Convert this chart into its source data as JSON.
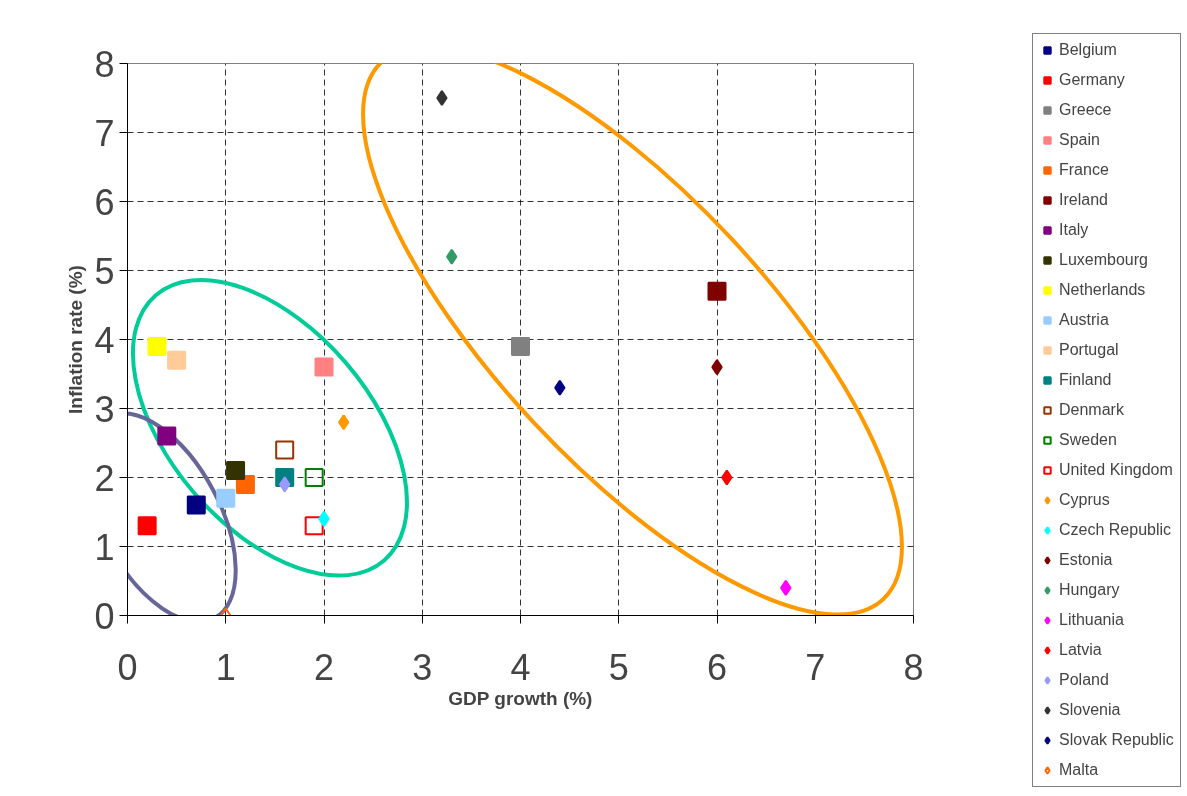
{
  "chart_data": {
    "type": "scatter",
    "xlabel": "GDP growth (%)",
    "ylabel": "Inflation rate (%)",
    "xlim": [
      0,
      8
    ],
    "ylim": [
      0,
      8
    ],
    "xticks": [
      0,
      1,
      2,
      3,
      4,
      5,
      6,
      7,
      8
    ],
    "yticks": [
      0,
      1,
      2,
      3,
      4,
      5,
      6,
      7,
      8
    ],
    "grid": true,
    "line_style": "dashed",
    "legend": "right",
    "series": [
      {
        "name": "Belgium",
        "color": "#000080",
        "marker": "square",
        "x": [
          0.7
        ],
        "values": [
          1.6
        ]
      },
      {
        "name": "Germany",
        "color": "#ff0000",
        "marker": "square",
        "x": [
          0.2
        ],
        "values": [
          1.3
        ]
      },
      {
        "name": "Greece",
        "color": "#808080",
        "marker": "square",
        "x": [
          4.0
        ],
        "values": [
          3.9
        ]
      },
      {
        "name": "Spain",
        "color": "#ff8080",
        "marker": "square",
        "x": [
          2.0
        ],
        "values": [
          3.6
        ]
      },
      {
        "name": "France",
        "color": "#ff6600",
        "marker": "square",
        "x": [
          1.2
        ],
        "values": [
          1.9
        ]
      },
      {
        "name": "Ireland",
        "color": "#800000",
        "marker": "square",
        "x": [
          6.0
        ],
        "values": [
          4.7
        ]
      },
      {
        "name": "Italy",
        "color": "#800080",
        "marker": "square",
        "x": [
          0.4
        ],
        "values": [
          2.6
        ]
      },
      {
        "name": "Luxembourg",
        "color": "#333300",
        "marker": "square",
        "x": [
          1.1
        ],
        "values": [
          2.1
        ]
      },
      {
        "name": "Netherlands",
        "color": "#ffff00",
        "marker": "square",
        "x": [
          0.3
        ],
        "values": [
          3.9
        ]
      },
      {
        "name": "Austria",
        "color": "#99ccff",
        "marker": "square",
        "x": [
          1.0
        ],
        "values": [
          1.7
        ]
      },
      {
        "name": "Portugal",
        "color": "#ffcc99",
        "marker": "square",
        "x": [
          0.5
        ],
        "values": [
          3.7
        ]
      },
      {
        "name": "Finland",
        "color": "#008080",
        "marker": "square",
        "x": [
          1.6
        ],
        "values": [
          2.0
        ]
      },
      {
        "name": "Denmark",
        "color": "#993300",
        "marker": "square_open",
        "x": [
          1.6
        ],
        "values": [
          2.4
        ]
      },
      {
        "name": "Sweden",
        "color": "#008000",
        "marker": "square_open",
        "x": [
          1.9
        ],
        "values": [
          2.0
        ]
      },
      {
        "name": "United Kingdom",
        "color": "#ff0000",
        "marker": "square_open",
        "x": [
          1.9
        ],
        "values": [
          1.3
        ]
      },
      {
        "name": "Cyprus",
        "color": "#ff9900",
        "marker": "diamond",
        "x": [
          2.2
        ],
        "values": [
          2.8
        ]
      },
      {
        "name": "Czech Republic",
        "color": "#00ffff",
        "marker": "diamond",
        "x": [
          2.0
        ],
        "values": [
          1.4
        ]
      },
      {
        "name": "Estonia",
        "color": "#800000",
        "marker": "diamond",
        "x": [
          6.0
        ],
        "values": [
          3.6
        ]
      },
      {
        "name": "Hungary",
        "color": "#339966",
        "marker": "diamond",
        "x": [
          3.3
        ],
        "values": [
          5.2
        ]
      },
      {
        "name": "Lithuania",
        "color": "#ff00ff",
        "marker": "diamond",
        "x": [
          6.7
        ],
        "values": [
          0.4
        ]
      },
      {
        "name": "Latvia",
        "color": "#ff0000",
        "marker": "diamond",
        "x": [
          6.1
        ],
        "values": [
          2.0
        ]
      },
      {
        "name": "Poland",
        "color": "#9999ff",
        "marker": "diamond",
        "x": [
          1.6
        ],
        "values": [
          1.9
        ]
      },
      {
        "name": "Slovenia",
        "color": "#333333",
        "marker": "diamond",
        "x": [
          3.2
        ],
        "values": [
          7.5
        ]
      },
      {
        "name": "Slovak Republic",
        "color": "#000080",
        "marker": "diamond",
        "x": [
          4.4
        ],
        "values": [
          3.3
        ]
      },
      {
        "name": "Malta",
        "color": "#ff6600",
        "marker": "diamond_open",
        "x": [
          1.0
        ],
        "values": [
          0.0
        ]
      }
    ]
  }
}
